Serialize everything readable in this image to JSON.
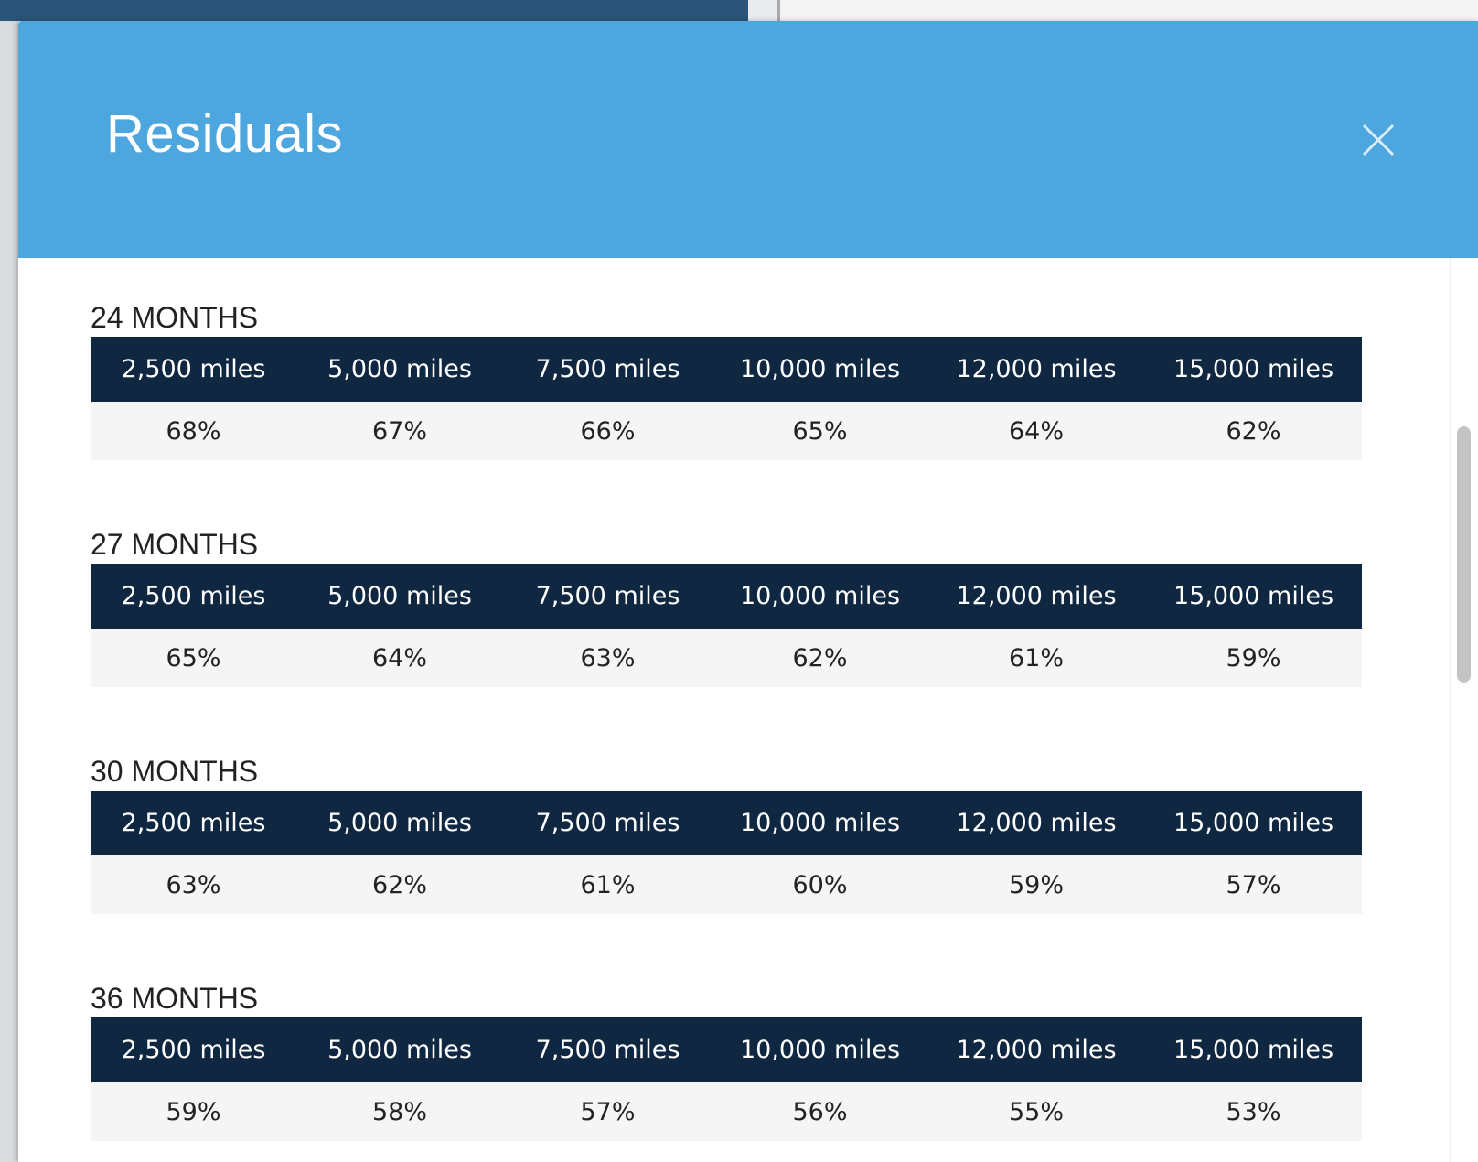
{
  "modal": {
    "title": "Residuals",
    "sections": [
      {
        "label": "24 MONTHS",
        "headers": [
          "2,500 miles",
          "5,000 miles",
          "7,500 miles",
          "10,000 miles",
          "12,000 miles",
          "15,000 miles"
        ],
        "values": [
          "68%",
          "67%",
          "66%",
          "65%",
          "64%",
          "62%"
        ]
      },
      {
        "label": "27 MONTHS",
        "headers": [
          "2,500 miles",
          "5,000 miles",
          "7,500 miles",
          "10,000 miles",
          "12,000 miles",
          "15,000 miles"
        ],
        "values": [
          "65%",
          "64%",
          "63%",
          "62%",
          "61%",
          "59%"
        ]
      },
      {
        "label": "30 MONTHS",
        "headers": [
          "2,500 miles",
          "5,000 miles",
          "7,500 miles",
          "10,000 miles",
          "12,000 miles",
          "15,000 miles"
        ],
        "values": [
          "63%",
          "62%",
          "61%",
          "60%",
          "59%",
          "57%"
        ]
      },
      {
        "label": "36 MONTHS",
        "headers": [
          "2,500 miles",
          "5,000 miles",
          "7,500 miles",
          "10,000 miles",
          "12,000 miles",
          "15,000 miles"
        ],
        "values": [
          "59%",
          "58%",
          "57%",
          "56%",
          "55%",
          "53%"
        ]
      }
    ]
  }
}
